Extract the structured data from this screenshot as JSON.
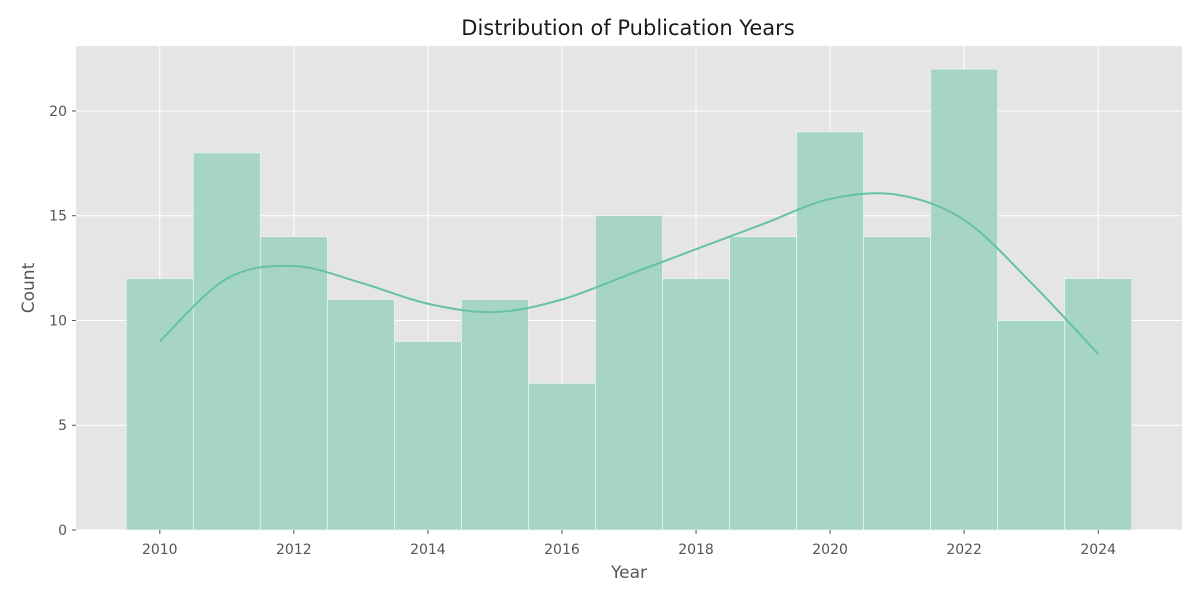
{
  "chart_data": {
    "type": "bar",
    "title": "Distribution of Publication Years",
    "xlabel": "Year",
    "ylabel": "Count",
    "categories": [
      "2010",
      "2011",
      "2012",
      "2013",
      "2014",
      "2015",
      "2016",
      "2017",
      "2018",
      "2019",
      "2020",
      "2021",
      "2022",
      "2023",
      "2024"
    ],
    "values": [
      12,
      18,
      14,
      11,
      9,
      11,
      7,
      15,
      12,
      14,
      19,
      14,
      22,
      10,
      12
    ],
    "kde": {
      "x": [
        2010,
        2011,
        2012,
        2013,
        2014,
        2015,
        2016,
        2017,
        2018,
        2019,
        2020,
        2021,
        2022,
        2023,
        2024
      ],
      "y": [
        9.0,
        12.0,
        12.6,
        11.8,
        10.8,
        10.4,
        11.0,
        12.2,
        13.4,
        14.6,
        15.8,
        16.0,
        14.8,
        11.8,
        8.4
      ]
    },
    "xlim": [
      2008.75,
      2025.25
    ],
    "ylim": [
      0,
      23.1
    ],
    "xticks": [
      2010,
      2012,
      2014,
      2016,
      2018,
      2020,
      2022,
      2024
    ],
    "yticks": [
      0,
      5,
      10,
      15,
      20
    ],
    "grid": true,
    "colors": {
      "bar": "#a6d5c4",
      "line": "#66c2a5",
      "background": "#e5e5e5",
      "grid": "#ffffff"
    }
  }
}
